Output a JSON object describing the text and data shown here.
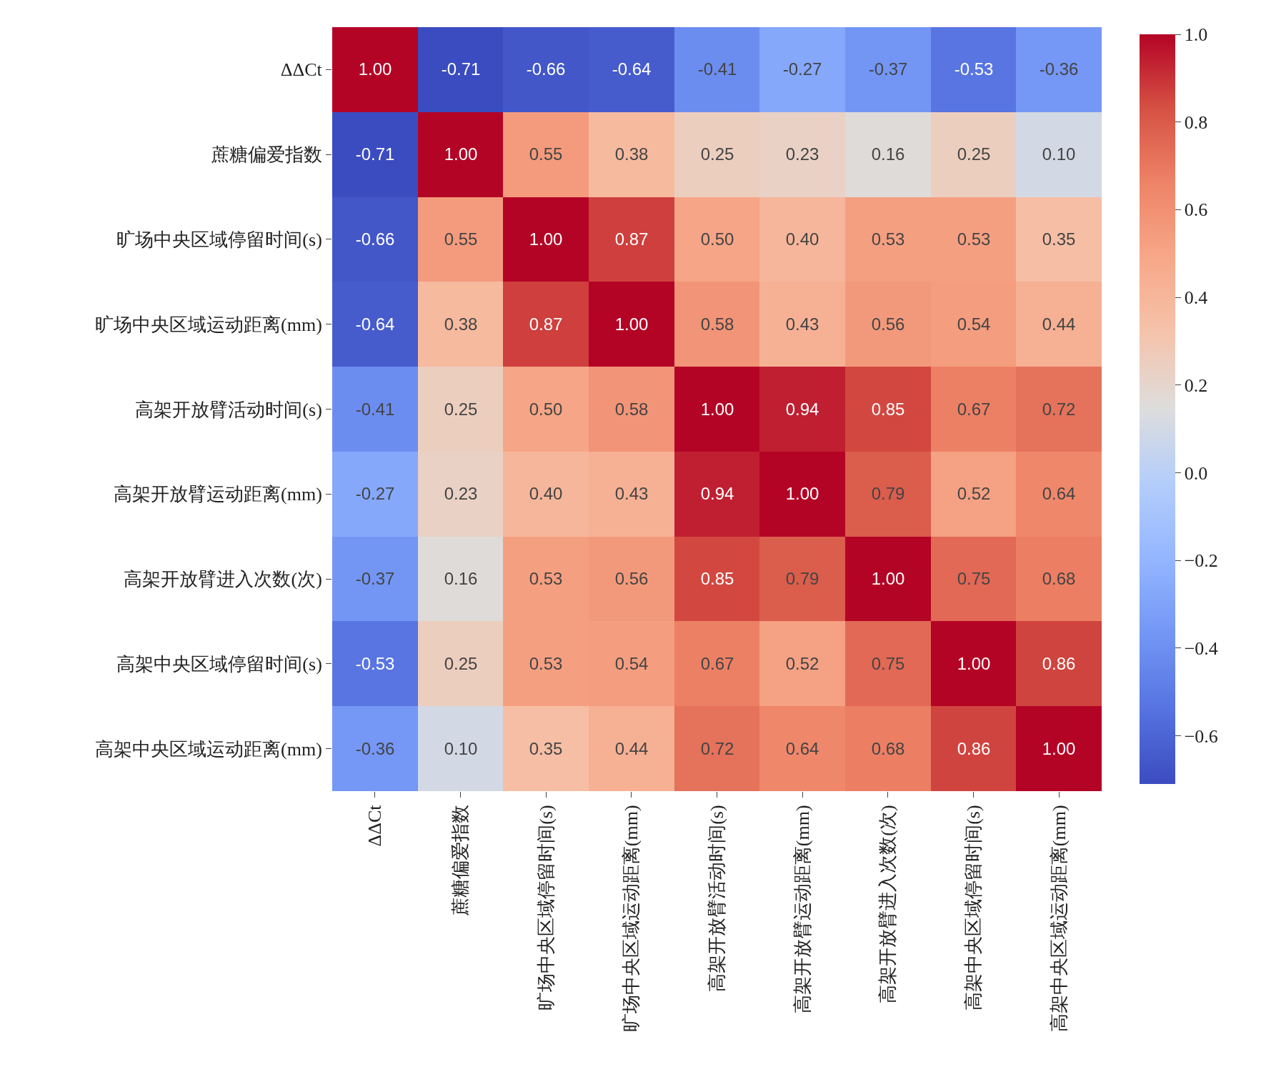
{
  "chart_data": {
    "type": "heatmap",
    "categories": [
      "ΔΔCt",
      "蔗糖偏爱指数",
      "旷场中央区域停留时间(s)",
      "旷场中央区域运动距离(mm)",
      "高架开放臂活动时间(s)",
      "高架开放臂运动距离(mm)",
      "高架开放臂进入次数(次)",
      "高架中央区域停留时间(s)",
      "高架中央区域运动距离(mm)"
    ],
    "y_categories": [
      "ΔΔCt",
      "蔗糖偏爱指数",
      "旷场中央区域停留时间(s)",
      "旷场中央区域运动距离(mm)",
      "高架开放臂活动时间(s)",
      "高架开放臂运动距离(mm)",
      "高架开放臂进入次数(次)",
      "高架中央区域停留时间(s)",
      "高架中央区域运动距离(mm)"
    ],
    "cells": [
      [
        1.0,
        -0.71,
        -0.66,
        -0.64,
        -0.41,
        -0.27,
        -0.37,
        -0.53,
        -0.36
      ],
      [
        -0.71,
        1.0,
        0.55,
        0.38,
        0.25,
        0.23,
        0.16,
        0.25,
        0.1
      ],
      [
        -0.66,
        0.55,
        1.0,
        0.87,
        0.5,
        0.4,
        0.53,
        0.53,
        0.35
      ],
      [
        -0.64,
        0.38,
        0.87,
        1.0,
        0.58,
        0.43,
        0.56,
        0.54,
        0.44
      ],
      [
        -0.41,
        0.25,
        0.5,
        0.58,
        1.0,
        0.94,
        0.85,
        0.67,
        0.72
      ],
      [
        -0.27,
        0.23,
        0.4,
        0.43,
        0.94,
        1.0,
        0.79,
        0.52,
        0.64
      ],
      [
        -0.37,
        0.16,
        0.53,
        0.56,
        0.85,
        0.79,
        1.0,
        0.75,
        0.68
      ],
      [
        -0.53,
        0.25,
        0.53,
        0.54,
        0.67,
        0.52,
        0.75,
        1.0,
        0.86
      ],
      [
        -0.36,
        0.1,
        0.35,
        0.44,
        0.72,
        0.64,
        0.68,
        0.86,
        1.0
      ]
    ],
    "cell_labels": [
      [
        "1.00",
        "-0.71",
        "-0.66",
        "-0.64",
        "-0.41",
        "-0.27",
        "-0.37",
        "-0.53",
        "-0.36"
      ],
      [
        "-0.71",
        "1.00",
        "0.55",
        "0.38",
        "0.25",
        "0.23",
        "0.16",
        "0.25",
        "0.10"
      ],
      [
        "-0.66",
        "0.55",
        "1.00",
        "0.87",
        "0.50",
        "0.40",
        "0.53",
        "0.53",
        "0.35"
      ],
      [
        "-0.64",
        "0.38",
        "0.87",
        "1.00",
        "0.58",
        "0.43",
        "0.56",
        "0.54",
        "0.44"
      ],
      [
        "-0.41",
        "0.25",
        "0.50",
        "0.58",
        "1.00",
        "0.94",
        "0.85",
        "0.67",
        "0.72"
      ],
      [
        "-0.27",
        "0.23",
        "0.40",
        "0.43",
        "0.94",
        "1.00",
        "0.79",
        "0.52",
        "0.64"
      ],
      [
        "-0.37",
        "0.16",
        "0.53",
        "0.56",
        "0.85",
        "0.79",
        "1.00",
        "0.75",
        "0.68"
      ],
      [
        "-0.53",
        "0.25",
        "0.53",
        "0.54",
        "0.67",
        "0.52",
        "0.75",
        "1.00",
        "0.86"
      ],
      [
        "-0.36",
        "0.10",
        "0.35",
        "0.44",
        "0.72",
        "0.64",
        "0.68",
        "0.86",
        "1.00"
      ]
    ],
    "clim": [
      -0.71,
      1.0
    ],
    "cticks": [
      {
        "value": 1.0,
        "label": "1.0"
      },
      {
        "value": 0.8,
        "label": "0.8"
      },
      {
        "value": 0.6,
        "label": "0.6"
      },
      {
        "value": 0.4,
        "label": "0.4"
      },
      {
        "value": 0.2,
        "label": "0.2"
      },
      {
        "value": 0.0,
        "label": "0.0"
      },
      {
        "value": -0.2,
        "label": "−0.2"
      },
      {
        "value": -0.4,
        "label": "−0.4"
      },
      {
        "value": -0.6,
        "label": "−0.6"
      }
    ]
  }
}
